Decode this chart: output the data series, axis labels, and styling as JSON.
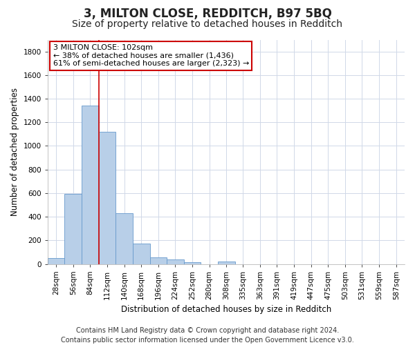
{
  "title": "3, MILTON CLOSE, REDDITCH, B97 5BQ",
  "subtitle": "Size of property relative to detached houses in Redditch",
  "xlabel": "Distribution of detached houses by size in Redditch",
  "ylabel": "Number of detached properties",
  "footer_line1": "Contains HM Land Registry data © Crown copyright and database right 2024.",
  "footer_line2": "Contains public sector information licensed under the Open Government Licence v3.0.",
  "bin_labels": [
    "28sqm",
    "56sqm",
    "84sqm",
    "112sqm",
    "140sqm",
    "168sqm",
    "196sqm",
    "224sqm",
    "252sqm",
    "280sqm",
    "308sqm",
    "335sqm",
    "363sqm",
    "391sqm",
    "419sqm",
    "447sqm",
    "475sqm",
    "503sqm",
    "531sqm",
    "559sqm",
    "587sqm"
  ],
  "bar_values": [
    50,
    595,
    1340,
    1120,
    430,
    170,
    58,
    38,
    15,
    0,
    20,
    0,
    0,
    0,
    0,
    0,
    0,
    0,
    0,
    0,
    0
  ],
  "bar_color": "#b8cfe8",
  "bar_edge_color": "#6699cc",
  "grid_color": "#d0d8e8",
  "annotation_line1": "3 MILTON CLOSE: 102sqm",
  "annotation_line2": "← 38% of detached houses are smaller (1,436)",
  "annotation_line3": "61% of semi-detached houses are larger (2,323) →",
  "annotation_box_color": "#ffffff",
  "annotation_box_edge_color": "#cc0000",
  "vline_color": "#cc0000",
  "property_size_sqm": 102,
  "ylim_max": 1900,
  "bin_width": 28,
  "bin_starts": [
    28,
    56,
    84,
    112,
    140,
    168,
    196,
    224,
    252,
    280,
    308,
    335,
    363,
    391,
    419,
    447,
    475,
    503,
    531,
    559,
    587
  ],
  "background_color": "#ffffff",
  "title_fontsize": 12,
  "subtitle_fontsize": 10,
  "axis_label_fontsize": 8.5,
  "tick_fontsize": 7.5,
  "annotation_fontsize": 8,
  "footer_fontsize": 7
}
